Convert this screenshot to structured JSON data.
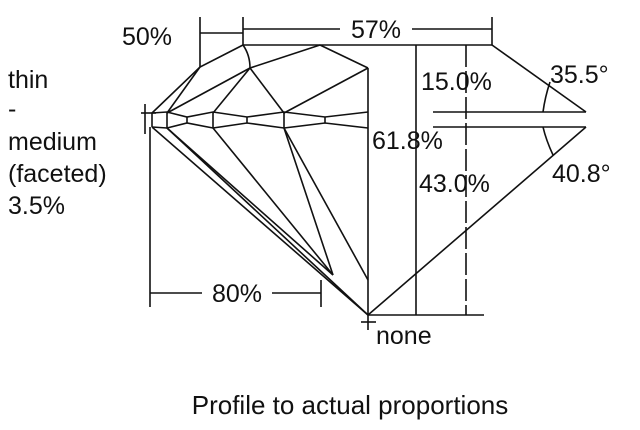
{
  "labels": {
    "crown_height_left": "50%",
    "table": "57%",
    "girdle_thin": "thin",
    "girdle_dash": "-",
    "girdle_medium": "medium",
    "girdle_faceted": "(faceted)",
    "girdle_pct": "3.5%",
    "crown_height": "15.0%",
    "crown_angle": "35.5°",
    "total_depth": "61.8%",
    "pavilion_depth": "43.0%",
    "pavilion_angle": "40.8°",
    "lower_half": "80%",
    "culet": "none"
  },
  "caption": "Profile to actual proportions"
}
